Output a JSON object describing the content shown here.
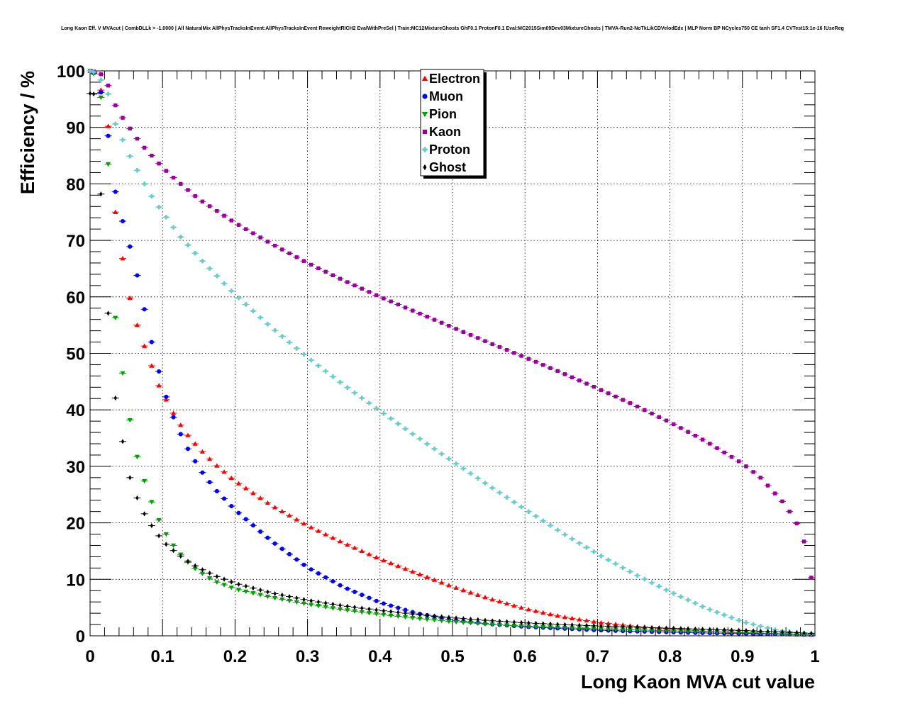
{
  "chart_data": {
    "type": "scatter",
    "title": "Long Kaon Eff. V MVAcut | CombDLLk > -1.0000 | All NaturalMix AllPhysTracksInEvent:AllPhysTracksInEvent ReweightRICH2 EvalWithPreSel | Train:MC12MixtureGhosts GhF0.1 ProtonF0.1 Eval:MC2015Sim09Dev03MixtureGhosts | TMVA-Run2-NoTkLikCDVelodEdx | MLP Norm BP NCycles750 CE tanh SF1.4 CVTest15:1e-16 !UseReg",
    "xlabel": "Long Kaon MVA cut value",
    "ylabel": "Efficiency / %",
    "xlim": [
      0,
      1
    ],
    "ylim": [
      0,
      100
    ],
    "x_ticks": [
      "0",
      "0.1",
      "0.2",
      "0.3",
      "0.4",
      "0.5",
      "0.6",
      "0.7",
      "0.8",
      "0.9",
      "1"
    ],
    "y_ticks": [
      "0",
      "10",
      "20",
      "30",
      "40",
      "50",
      "60",
      "70",
      "80",
      "90",
      "100"
    ],
    "grid": true,
    "legend_position": "top-center",
    "series": [
      {
        "name": "Electron",
        "color": "#ff0000",
        "marker": "triangle-up",
        "anchors": [
          [
            0,
            100
          ],
          [
            0.005,
            99.7
          ],
          [
            0.015,
            96.6
          ],
          [
            0.025,
            90.2
          ],
          [
            0.035,
            75
          ],
          [
            0.045,
            66.8
          ],
          [
            0.055,
            59.8
          ],
          [
            0.065,
            55
          ],
          [
            0.075,
            51.3
          ],
          [
            0.085,
            47.8
          ],
          [
            0.095,
            44.3
          ],
          [
            0.105,
            41.8
          ],
          [
            0.115,
            39.4
          ],
          [
            0.125,
            37.3
          ],
          [
            0.135,
            35.5
          ],
          [
            0.145,
            34
          ],
          [
            0.155,
            32.6
          ],
          [
            0.165,
            31.3
          ],
          [
            0.175,
            30.1
          ],
          [
            0.2,
            27.4
          ],
          [
            0.25,
            23.1
          ],
          [
            0.3,
            19.5
          ],
          [
            0.35,
            16.4
          ],
          [
            0.4,
            13.6
          ],
          [
            0.45,
            11.1
          ],
          [
            0.5,
            8.7
          ],
          [
            0.55,
            6.6
          ],
          [
            0.6,
            4.8
          ],
          [
            0.65,
            3.4
          ],
          [
            0.7,
            2.4
          ],
          [
            0.75,
            1.7
          ],
          [
            0.8,
            1.2
          ],
          [
            0.85,
            0.8
          ],
          [
            0.9,
            0.5
          ],
          [
            0.95,
            0.3
          ],
          [
            1.0,
            0.15
          ]
        ]
      },
      {
        "name": "Muon",
        "color": "#0000ff",
        "marker": "circle",
        "anchors": [
          [
            0,
            100
          ],
          [
            0.005,
            99.6
          ],
          [
            0.015,
            96.2
          ],
          [
            0.025,
            88.5
          ],
          [
            0.035,
            78.6
          ],
          [
            0.045,
            73.4
          ],
          [
            0.055,
            68.9
          ],
          [
            0.065,
            63.8
          ],
          [
            0.075,
            57.8
          ],
          [
            0.085,
            52
          ],
          [
            0.095,
            46.8
          ],
          [
            0.105,
            42.3
          ],
          [
            0.115,
            38.7
          ],
          [
            0.125,
            35.7
          ],
          [
            0.135,
            33.1
          ],
          [
            0.145,
            30.9
          ],
          [
            0.155,
            28.9
          ],
          [
            0.165,
            27.2
          ],
          [
            0.175,
            25.6
          ],
          [
            0.2,
            22.3
          ],
          [
            0.25,
            16.8
          ],
          [
            0.3,
            12.1
          ],
          [
            0.35,
            8.6
          ],
          [
            0.4,
            5.9
          ],
          [
            0.45,
            4
          ],
          [
            0.5,
            2.8
          ],
          [
            0.55,
            2.1
          ],
          [
            0.6,
            1.6
          ],
          [
            0.65,
            1.3
          ],
          [
            0.7,
            1
          ],
          [
            0.75,
            0.8
          ],
          [
            0.8,
            0.65
          ],
          [
            0.85,
            0.5
          ],
          [
            0.9,
            0.4
          ],
          [
            0.95,
            0.3
          ],
          [
            1.0,
            0.2
          ]
        ]
      },
      {
        "name": "Pion",
        "color": "#00a000",
        "marker": "triangle-down",
        "anchors": [
          [
            0,
            100
          ],
          [
            0.005,
            99.5
          ],
          [
            0.015,
            95.3
          ],
          [
            0.025,
            83.5
          ],
          [
            0.035,
            56.3
          ],
          [
            0.045,
            46.5
          ],
          [
            0.055,
            38.2
          ],
          [
            0.065,
            31.7
          ],
          [
            0.075,
            27.4
          ],
          [
            0.085,
            23.7
          ],
          [
            0.095,
            20.5
          ],
          [
            0.105,
            18
          ],
          [
            0.115,
            16
          ],
          [
            0.125,
            14.4
          ],
          [
            0.135,
            13
          ],
          [
            0.145,
            11.9
          ],
          [
            0.155,
            11
          ],
          [
            0.165,
            10.2
          ],
          [
            0.175,
            9.5
          ],
          [
            0.2,
            8.3
          ],
          [
            0.25,
            6.8
          ],
          [
            0.3,
            5.6
          ],
          [
            0.35,
            4.6
          ],
          [
            0.4,
            3.8
          ],
          [
            0.45,
            3.1
          ],
          [
            0.5,
            2.5
          ],
          [
            0.55,
            2.05
          ],
          [
            0.6,
            1.7
          ],
          [
            0.65,
            1.45
          ],
          [
            0.7,
            1.25
          ],
          [
            0.75,
            1.05
          ],
          [
            0.8,
            0.9
          ],
          [
            0.85,
            0.75
          ],
          [
            0.9,
            0.6
          ],
          [
            0.95,
            0.4
          ],
          [
            1.0,
            0.2
          ]
        ]
      },
      {
        "name": "Kaon",
        "color": "#990099",
        "marker": "square",
        "anchors": [
          [
            0,
            100
          ],
          [
            0.005,
            99.9
          ],
          [
            0.015,
            99.4
          ],
          [
            0.025,
            97.4
          ],
          [
            0.035,
            93.9
          ],
          [
            0.045,
            91.7
          ],
          [
            0.055,
            89.8
          ],
          [
            0.065,
            88
          ],
          [
            0.075,
            86.4
          ],
          [
            0.085,
            85
          ],
          [
            0.095,
            83.6
          ],
          [
            0.105,
            82.3
          ],
          [
            0.115,
            81.1
          ],
          [
            0.125,
            80
          ],
          [
            0.15,
            77.3
          ],
          [
            0.2,
            73.1
          ],
          [
            0.25,
            69.4
          ],
          [
            0.3,
            66
          ],
          [
            0.35,
            62.9
          ],
          [
            0.4,
            60
          ],
          [
            0.45,
            57.3
          ],
          [
            0.5,
            54.6
          ],
          [
            0.55,
            51.9
          ],
          [
            0.6,
            49.3
          ],
          [
            0.65,
            46.6
          ],
          [
            0.7,
            43.8
          ],
          [
            0.75,
            40.9
          ],
          [
            0.8,
            37.8
          ],
          [
            0.85,
            34.4
          ],
          [
            0.9,
            30.5
          ],
          [
            0.925,
            28
          ],
          [
            0.945,
            25.2
          ],
          [
            0.955,
            23.8
          ],
          [
            0.965,
            22
          ],
          [
            0.975,
            19.9
          ],
          [
            0.985,
            16.7
          ],
          [
            0.995,
            10.3
          ]
        ]
      },
      {
        "name": "Proton",
        "color": "#66cccc",
        "marker": "cross",
        "anchors": [
          [
            0,
            100
          ],
          [
            0.005,
            99.8
          ],
          [
            0.015,
            98.4
          ],
          [
            0.025,
            95.9
          ],
          [
            0.035,
            90.6
          ],
          [
            0.045,
            87.8
          ],
          [
            0.055,
            84.9
          ],
          [
            0.065,
            82.4
          ],
          [
            0.075,
            80
          ],
          [
            0.085,
            77.8
          ],
          [
            0.095,
            75.9
          ],
          [
            0.105,
            74.1
          ],
          [
            0.115,
            72.3
          ],
          [
            0.125,
            70.6
          ],
          [
            0.15,
            67
          ],
          [
            0.2,
            60.4
          ],
          [
            0.25,
            54.6
          ],
          [
            0.3,
            49.3
          ],
          [
            0.35,
            44.4
          ],
          [
            0.4,
            39.8
          ],
          [
            0.45,
            35.3
          ],
          [
            0.5,
            30.9
          ],
          [
            0.55,
            26.6
          ],
          [
            0.6,
            22.4
          ],
          [
            0.65,
            18.3
          ],
          [
            0.7,
            14.5
          ],
          [
            0.75,
            11
          ],
          [
            0.8,
            7.8
          ],
          [
            0.85,
            4.9
          ],
          [
            0.9,
            2.5
          ],
          [
            0.95,
            0.9
          ],
          [
            1.0,
            0.3
          ]
        ]
      },
      {
        "name": "Ghost",
        "color": "#000000",
        "marker": "diamond",
        "anchors": [
          [
            0,
            96
          ],
          [
            0.005,
            95.9
          ],
          [
            0.015,
            78.2
          ],
          [
            0.025,
            57.1
          ],
          [
            0.035,
            42.1
          ],
          [
            0.045,
            34.4
          ],
          [
            0.055,
            28
          ],
          [
            0.065,
            24.4
          ],
          [
            0.075,
            21.6
          ],
          [
            0.085,
            19.5
          ],
          [
            0.095,
            17.7
          ],
          [
            0.105,
            16.2
          ],
          [
            0.115,
            15.1
          ],
          [
            0.125,
            14.1
          ],
          [
            0.135,
            13.2
          ],
          [
            0.145,
            12.4
          ],
          [
            0.155,
            11.7
          ],
          [
            0.165,
            11.1
          ],
          [
            0.175,
            10.5
          ],
          [
            0.2,
            9.3
          ],
          [
            0.25,
            7.6
          ],
          [
            0.3,
            6.3
          ],
          [
            0.35,
            5.3
          ],
          [
            0.4,
            4.5
          ],
          [
            0.45,
            3.8
          ],
          [
            0.5,
            3.2
          ],
          [
            0.55,
            2.7
          ],
          [
            0.6,
            2.3
          ],
          [
            0.65,
            2
          ],
          [
            0.7,
            1.75
          ],
          [
            0.75,
            1.55
          ],
          [
            0.8,
            1.35
          ],
          [
            0.85,
            1.15
          ],
          [
            0.9,
            0.95
          ],
          [
            0.95,
            0.7
          ],
          [
            1.0,
            0.4
          ]
        ]
      }
    ]
  }
}
